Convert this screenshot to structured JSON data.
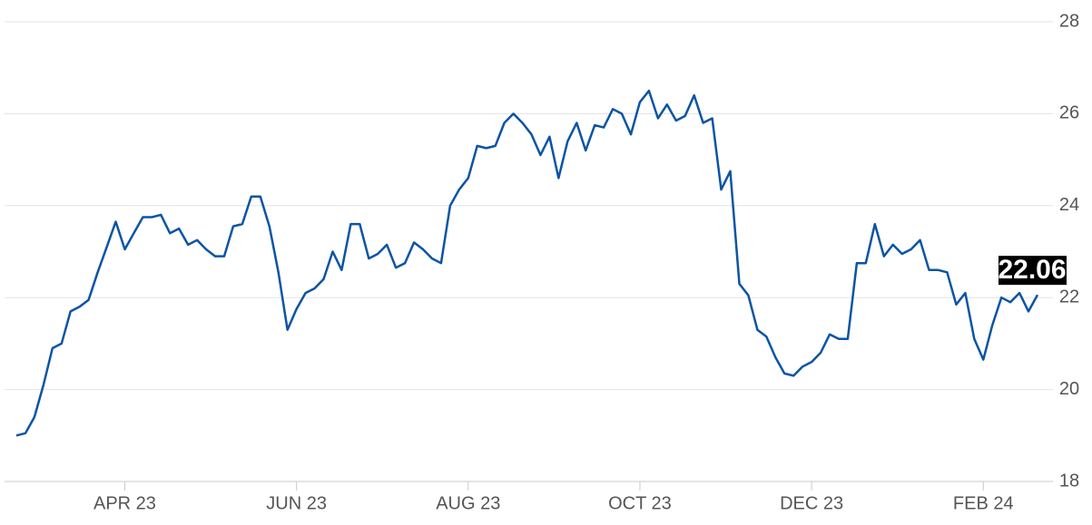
{
  "chart_data": {
    "type": "line",
    "categories": [
      null,
      null,
      null,
      null,
      null,
      null,
      null,
      null,
      null,
      null,
      null,
      null,
      "APR 23",
      null,
      null,
      null,
      null,
      null,
      null,
      null,
      null,
      null,
      null,
      null,
      null,
      null,
      null,
      null,
      null,
      null,
      null,
      "JUN 23",
      null,
      null,
      null,
      null,
      null,
      null,
      null,
      null,
      null,
      null,
      null,
      null,
      null,
      null,
      null,
      null,
      null,
      null,
      "AUG 23",
      null,
      null,
      null,
      null,
      null,
      null,
      null,
      null,
      null,
      null,
      null,
      null,
      null,
      null,
      null,
      null,
      null,
      null,
      "OCT 23",
      null,
      null,
      null,
      null,
      null,
      null,
      null,
      null,
      null,
      null,
      null,
      null,
      null,
      null,
      null,
      null,
      null,
      null,
      "DEC 23",
      null,
      null,
      null,
      null,
      null,
      null,
      null,
      null,
      null,
      null,
      null,
      null,
      null,
      null,
      null,
      null,
      null,
      null,
      "FEB 24",
      null,
      null,
      null,
      null,
      null,
      null
    ],
    "values": [
      19.0,
      19.05,
      19.4,
      20.1,
      20.9,
      21.0,
      21.7,
      21.8,
      21.95,
      22.55,
      23.1,
      23.65,
      23.05,
      23.4,
      23.75,
      23.75,
      23.8,
      23.4,
      23.5,
      23.15,
      23.25,
      23.05,
      22.9,
      22.9,
      23.55,
      23.6,
      24.2,
      24.2,
      23.55,
      22.55,
      21.3,
      21.75,
      22.1,
      22.2,
      22.4,
      23.0,
      22.6,
      23.6,
      23.6,
      22.85,
      22.95,
      23.15,
      22.65,
      22.75,
      23.2,
      23.05,
      22.85,
      22.75,
      24.0,
      24.35,
      24.6,
      25.3,
      25.25,
      25.3,
      25.8,
      26.0,
      25.8,
      25.55,
      25.1,
      25.5,
      24.6,
      25.4,
      25.8,
      25.2,
      25.75,
      25.7,
      26.1,
      26.0,
      25.55,
      26.25,
      26.5,
      25.9,
      26.2,
      25.85,
      25.95,
      26.4,
      25.8,
      25.9,
      24.35,
      24.75,
      22.3,
      22.05,
      21.3,
      21.15,
      20.7,
      20.35,
      20.3,
      20.5,
      20.6,
      20.8,
      21.2,
      21.1,
      21.1,
      22.75,
      22.75,
      23.6,
      22.9,
      23.15,
      22.95,
      23.05,
      23.25,
      22.6,
      22.6,
      22.55,
      21.85,
      22.1,
      21.1,
      20.65,
      21.4,
      22.0,
      21.9,
      22.1,
      21.7,
      22.06
    ],
    "color": "#0b54a4",
    "ylim": [
      18,
      28
    ],
    "yticks": [
      18,
      20,
      22,
      24,
      26,
      28
    ],
    "grid": true
  }
}
